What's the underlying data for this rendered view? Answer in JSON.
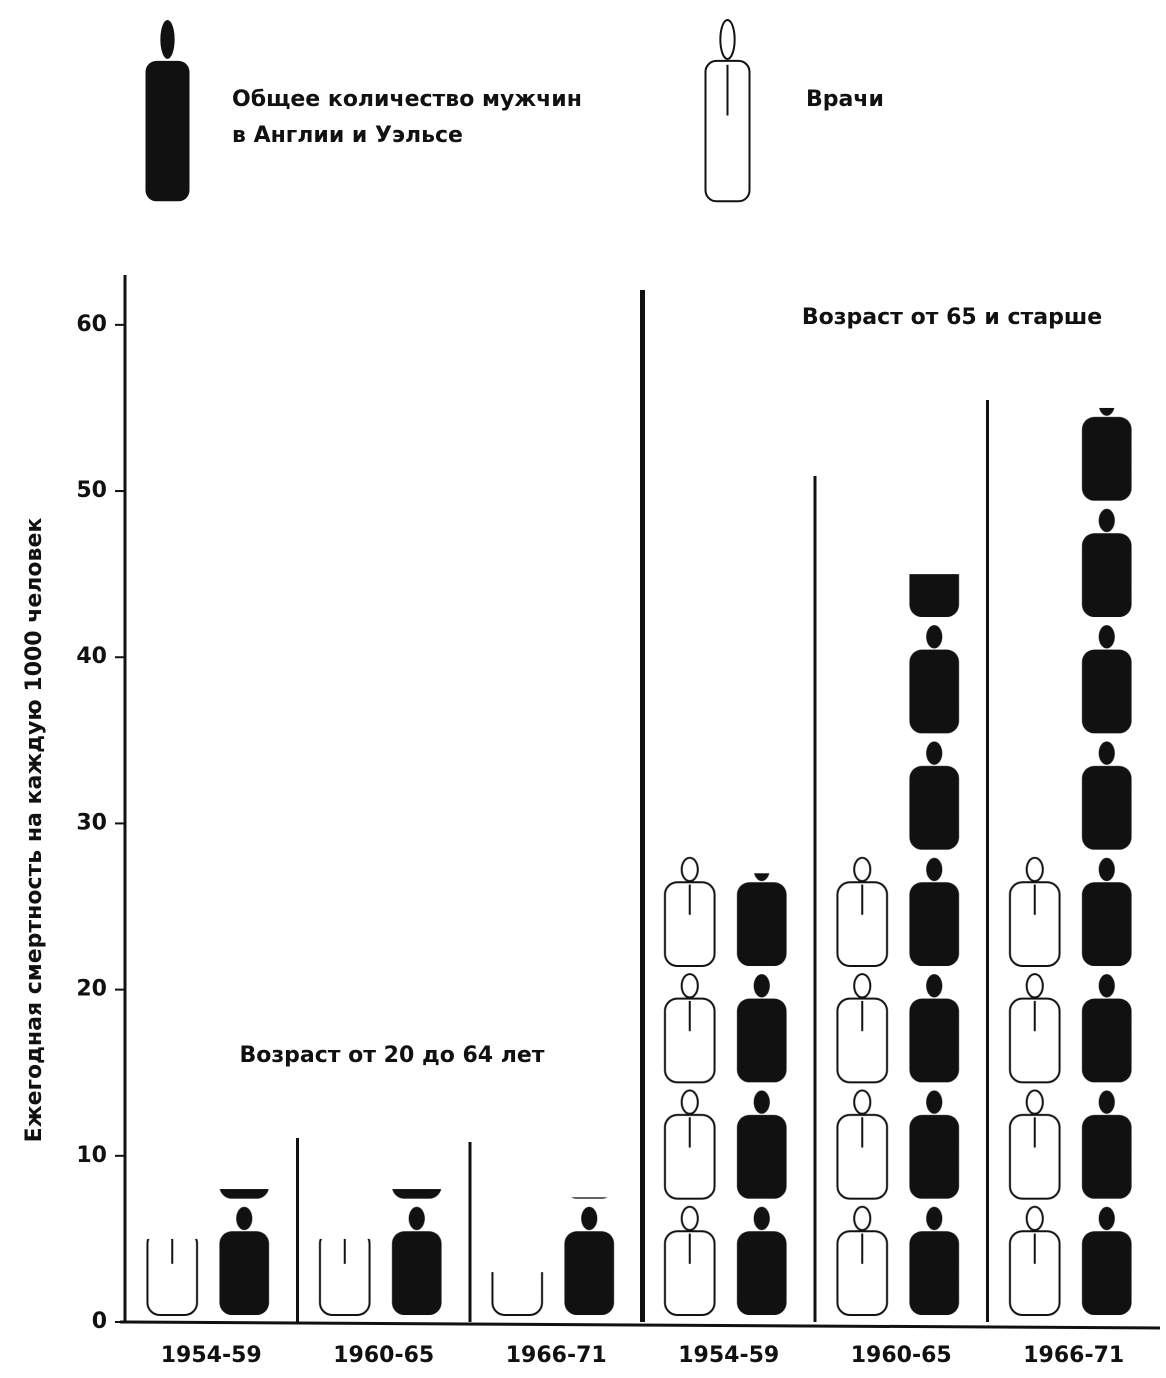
{
  "chart_data": {
    "type": "pictogram",
    "y_label": "Ежегодная смертность на каждую 1000 человек",
    "categories": [
      "1954-59",
      "1960-65",
      "1966-71",
      "1954-59",
      "1960-65",
      "1966-71"
    ],
    "annotations": [
      "Возраст от 20 до 64 лет",
      "Возраст от 65 и старше"
    ],
    "series": [
      {
        "name": "Общее количество мужчин в Англии и Уэльсе",
        "color": "#111111",
        "style": "filled",
        "values": [
          8,
          8,
          7.5,
          27,
          45,
          55
        ]
      },
      {
        "name": "Врачи",
        "color": "#111111",
        "style": "outline",
        "values": [
          5,
          5,
          3,
          28,
          28,
          28
        ]
      }
    ],
    "ylim": [
      0,
      63
    ],
    "yticks": [
      0,
      10,
      20,
      30,
      40,
      50,
      60
    ]
  }
}
